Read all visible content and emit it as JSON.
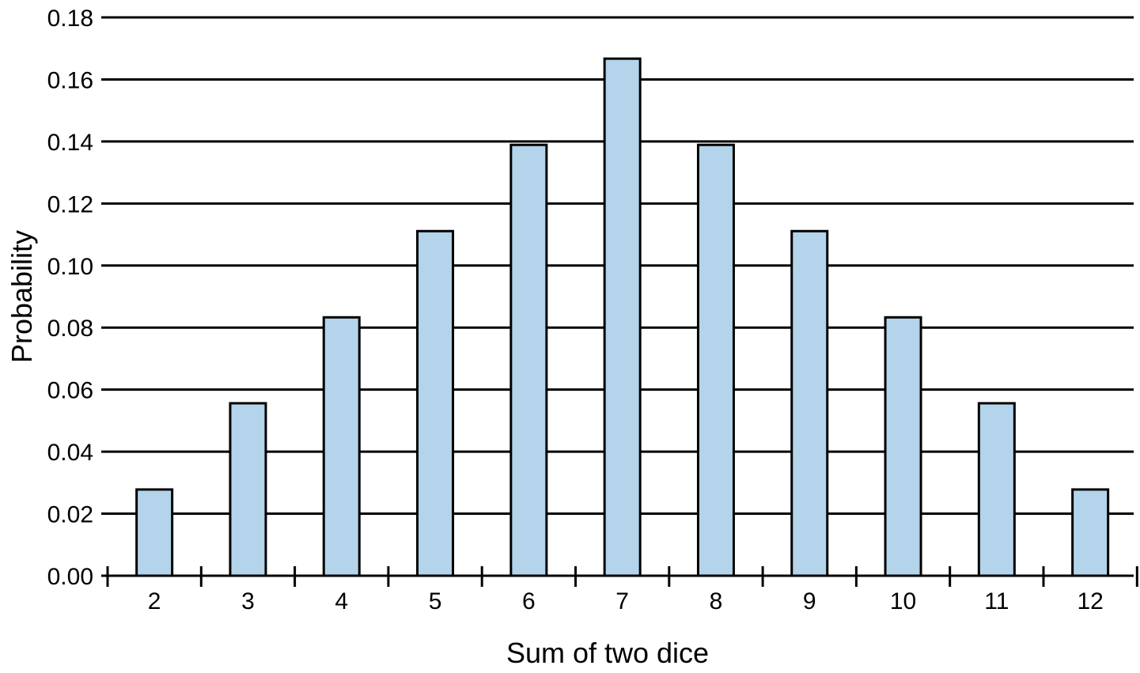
{
  "chart_data": {
    "type": "bar",
    "title": "",
    "xlabel": "Sum of two dice",
    "ylabel": "Probability",
    "categories": [
      "2",
      "3",
      "4",
      "5",
      "6",
      "7",
      "8",
      "9",
      "10",
      "11",
      "12"
    ],
    "values": [
      0.0278,
      0.0556,
      0.0833,
      0.1111,
      0.1389,
      0.1667,
      0.1389,
      0.1111,
      0.0833,
      0.0556,
      0.0278
    ],
    "ylim": [
      0.0,
      0.18
    ],
    "yticks": [
      "0.00",
      "0.02",
      "0.04",
      "0.06",
      "0.08",
      "0.10",
      "0.12",
      "0.14",
      "0.16",
      "0.18"
    ],
    "grid": "horizontal",
    "legend": "none",
    "colors": {
      "bar_fill": "#b3d4ea",
      "bar_stroke": "#000000",
      "grid": "#000000"
    }
  }
}
